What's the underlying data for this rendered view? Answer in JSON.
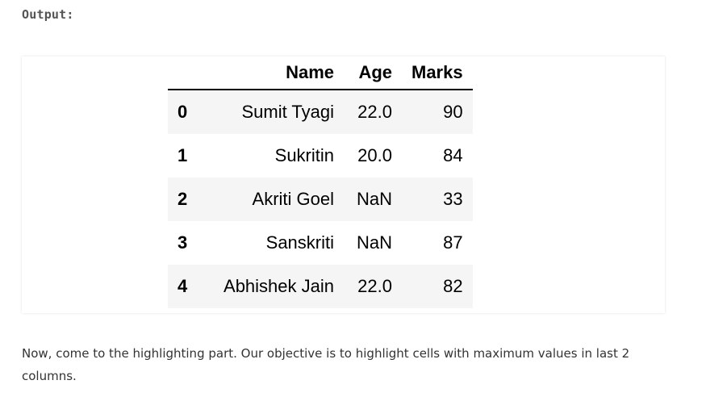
{
  "output_label": "Output:",
  "table": {
    "columns": [
      "",
      "Name",
      "Age",
      "Marks"
    ],
    "rows": [
      {
        "index": "0",
        "name": "Sumit Tyagi",
        "age": "22.0",
        "marks": "90"
      },
      {
        "index": "1",
        "name": "Sukritin",
        "age": "20.0",
        "marks": "84"
      },
      {
        "index": "2",
        "name": "Akriti Goel",
        "age": "NaN",
        "marks": "33"
      },
      {
        "index": "3",
        "name": "Sanskriti",
        "age": "NaN",
        "marks": "87"
      },
      {
        "index": "4",
        "name": "Abhishek Jain",
        "age": "22.0",
        "marks": "82"
      }
    ],
    "stripe_color": "#f5f5f5"
  },
  "paragraph": "Now, come to the highlighting part. Our objective is to highlight cells with maximum values in last 2 columns."
}
